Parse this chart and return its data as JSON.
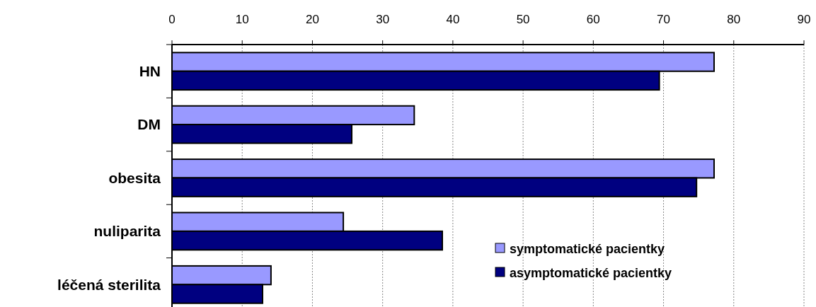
{
  "chart_data": {
    "type": "bar",
    "orientation": "horizontal",
    "categories": [
      "HN",
      "DM",
      "obesita",
      "nuliparita",
      "léčená sterilita"
    ],
    "series": [
      {
        "name": "symptomatické pacientky",
        "color": "#9999ff",
        "values": [
          77.2,
          34.5,
          77.2,
          24.4,
          14.1
        ]
      },
      {
        "name": "asymptomatické pacientky",
        "color": "#000080",
        "values": [
          69.4,
          25.6,
          74.7,
          38.5,
          12.9
        ]
      }
    ],
    "xlim": [
      0,
      90
    ],
    "xticks": [
      0,
      10,
      20,
      30,
      40,
      50,
      60,
      70,
      80,
      90
    ],
    "grid": "x",
    "legend": "bottom right"
  }
}
